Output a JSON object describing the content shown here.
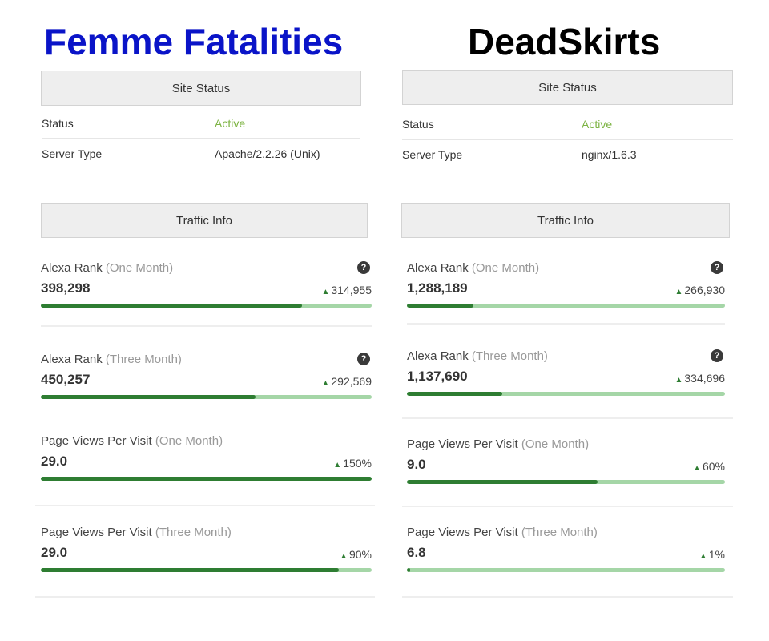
{
  "sites": [
    {
      "name": "Femme Fatalities",
      "site_status": {
        "header": "Site Status",
        "rows": [
          {
            "label": "Status",
            "value": "Active"
          },
          {
            "label": "Server Type",
            "value": "Apache/2.2.26 (Unix)"
          }
        ]
      },
      "traffic_info": {
        "header": "Traffic Info",
        "metrics": [
          {
            "title": "Alexa Rank",
            "period": "(One Month)",
            "value": "398,298",
            "delta": "314,955",
            "help_icon": "question-circle-icon",
            "progress": 0.79
          },
          {
            "title": "Alexa Rank",
            "period": "(Three Month)",
            "value": "450,257",
            "delta": "292,569",
            "help_icon": "question-circle-icon",
            "progress": 0.65
          },
          {
            "title": "Page Views Per Visit",
            "period": "(One Month)",
            "value": "29.0",
            "delta": "150%",
            "progress": 1.0
          },
          {
            "title": "Page Views Per Visit",
            "period": "(Three Month)",
            "value": "29.0",
            "delta": "90%",
            "progress": 0.9
          }
        ]
      }
    },
    {
      "name": "DeadSkirts",
      "site_status": {
        "header": "Site Status",
        "rows": [
          {
            "label": "Status",
            "value": "Active"
          },
          {
            "label": "Server Type",
            "value": "nginx/1.6.3"
          }
        ]
      },
      "traffic_info": {
        "header": "Traffic Info",
        "metrics": [
          {
            "title": "Alexa Rank",
            "period": "(One Month)",
            "value": "1,288,189",
            "delta": "266,930",
            "help_icon": "question-circle-icon",
            "progress": 0.21
          },
          {
            "title": "Alexa Rank",
            "period": "(Three Month)",
            "value": "1,137,690",
            "delta": "334,696",
            "help_icon": "question-circle-icon",
            "progress": 0.3
          },
          {
            "title": "Page Views Per Visit",
            "period": "(One Month)",
            "value": "9.0",
            "delta": "60%",
            "progress": 0.6
          },
          {
            "title": "Page Views Per Visit",
            "period": "(Three Month)",
            "value": "6.8",
            "delta": "1%",
            "progress": 0.01
          }
        ]
      }
    }
  ],
  "colors": {
    "left_title": "#0a14c8",
    "right_title": "#000000",
    "active": "#7cb342",
    "bar_fill": "#2e7d32",
    "bar_track": "#a5d6a7",
    "delta_up": "#2e7d32"
  }
}
